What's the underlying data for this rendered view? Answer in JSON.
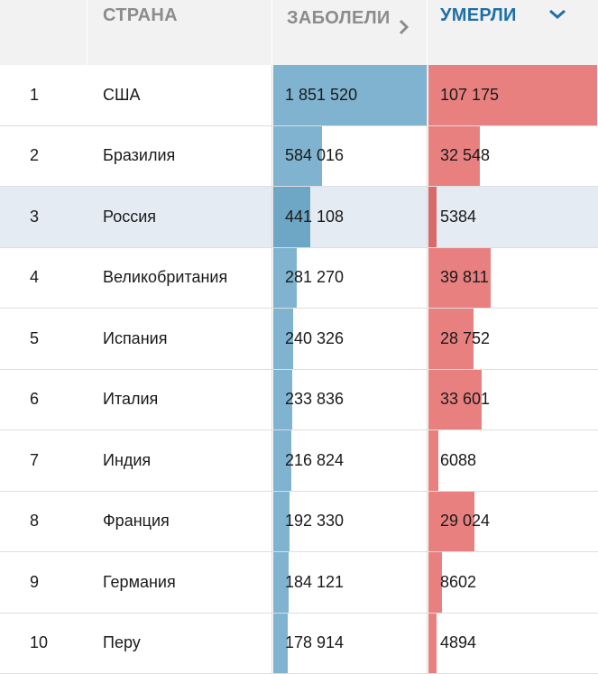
{
  "header": {
    "country": "СТРАНА",
    "cases": "ЗАБОЛЕЛИ",
    "deaths": "УМЕРЛИ"
  },
  "icons": {
    "cases_sort": "chevron-right-icon",
    "deaths_sort": "chevron-down-icon"
  },
  "colors": {
    "cases_bar": "#7fb3cf",
    "deaths_bar": "#e98080",
    "active_header": "#1f6fa8",
    "highlight_row": "#e4ebf2"
  },
  "rows": [
    {
      "rank": "1",
      "country": "США",
      "cases": "1 851 520",
      "deaths": "107 175",
      "cases_num": 1851520,
      "deaths_num": 107175
    },
    {
      "rank": "2",
      "country": "Бразилия",
      "cases": "584 016",
      "deaths": "32 548",
      "cases_num": 584016,
      "deaths_num": 32548
    },
    {
      "rank": "3",
      "country": "Россия",
      "cases": "441 108",
      "deaths": "5384",
      "cases_num": 441108,
      "deaths_num": 5384
    },
    {
      "rank": "4",
      "country": "Великобритания",
      "cases": "281 270",
      "deaths": "39 811",
      "cases_num": 281270,
      "deaths_num": 39811
    },
    {
      "rank": "5",
      "country": "Испания",
      "cases": "240 326",
      "deaths": "28 752",
      "cases_num": 240326,
      "deaths_num": 28752
    },
    {
      "rank": "6",
      "country": "Италия",
      "cases": "233 836",
      "deaths": "33 601",
      "cases_num": 233836,
      "deaths_num": 33601
    },
    {
      "rank": "7",
      "country": "Индия",
      "cases": "216 824",
      "deaths": "6088",
      "cases_num": 216824,
      "deaths_num": 6088
    },
    {
      "rank": "8",
      "country": "Франция",
      "cases": "192 330",
      "deaths": "29 024",
      "cases_num": 192330,
      "deaths_num": 29024
    },
    {
      "rank": "9",
      "country": "Германия",
      "cases": "184 121",
      "deaths": "8602",
      "cases_num": 184121,
      "deaths_num": 8602
    },
    {
      "rank": "10",
      "country": "Перу",
      "cases": "178 914",
      "deaths": "4894",
      "cases_num": 178914,
      "deaths_num": 4894
    }
  ]
}
